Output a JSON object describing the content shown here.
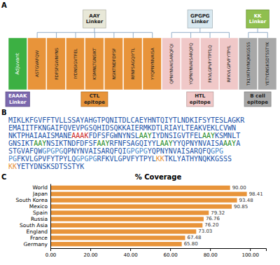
{
  "chart_data": {
    "type": "bar",
    "orientation": "horizontal",
    "title": "% Coverage",
    "categories": [
      "World",
      "Japan",
      "South Korea",
      "Mexico",
      "Spain",
      "Russia",
      "South Asia",
      "England",
      "France",
      "Germany"
    ],
    "values": [
      90.0,
      98.41,
      93.48,
      90.85,
      79.32,
      76.76,
      76.2,
      73.03,
      67.48,
      65.8
    ],
    "value_labels": [
      "90.00",
      "98.41",
      "93.48",
      "90.85",
      "79.32",
      "76.76",
      "76.20",
      "73.03",
      "67.48",
      "65.80"
    ],
    "data_labels": true,
    "color": "#E8943A",
    "grid": false,
    "xlim": [
      0,
      108
    ],
    "xticks": [
      {
        "value": 0,
        "label": "0.00"
      },
      {
        "value": 20,
        "label": "20.00"
      },
      {
        "value": 40,
        "label": "40.00"
      },
      {
        "value": 60,
        "label": "60.00"
      },
      {
        "value": 80,
        "label": "80.00"
      },
      {
        "value": 100,
        "label": "100.00"
      }
    ],
    "annotations": [
      {
        "text": "A"
      },
      {
        "text": "Adjuvant",
        "color": "#3CB043"
      },
      {
        "text": "ASTGVAFQW",
        "color": "#E8943A"
      },
      {
        "text": "FDFSFGWNYNS",
        "color": "#E8943A"
      },
      {
        "text": "IYDNSIGVTFEL",
        "color": "#E8943A"
      },
      {
        "text": "KSMNLTGNSIKT",
        "color": "#E8943A"
      },
      {
        "text": "NSIKTNDFDFSF",
        "color": "#E8943A"
      },
      {
        "text": "RFNFSAGQIYTL",
        "color": "#E8943A"
      },
      {
        "text": "YYQPNYNVAISA",
        "color": "#E8943A"
      },
      {
        "text": "QPNYNVAISARQFQI",
        "color": "#F0C8C8"
      },
      {
        "text": "YQPNYNVAISARQFQ",
        "color": "#F0C8C8"
      },
      {
        "text": "FKVLGPVFYTPTLQ",
        "color": "#F0C8C8"
      },
      {
        "text": "RFKVLGPVFYTPYL",
        "color": "#F0C8C8"
      },
      {
        "text": "TKLYATHYNQKKGSSS",
        "color": "#A8A8A8"
      },
      {
        "text": "YETYDNSKSDTSSTYK",
        "color": "#A8A8A8"
      },
      {
        "text": "AAY\nLinker",
        "color": "#E8E8D8"
      },
      {
        "text": "GPGPG\nLinker",
        "color": "#D8E8F0"
      },
      {
        "text": "KK\nLinker",
        "color": "#8FBF4F"
      },
      {
        "text": "EAAAK\nLinker",
        "color": "#7B68AE"
      },
      {
        "text": "CTL\nepitope",
        "color": "#E8943A"
      },
      {
        "text": "HTL\nepitope",
        "color": "#F0C8C8"
      },
      {
        "text": "B cell\nepitope",
        "color": "#A8A8A8"
      },
      {
        "text": "B"
      },
      {
        "segments": [
          {
            "text": "MIKLKFGVFFTVLLSSAYAHGTPQNITDLCAEYHNTQIYTLNDKIFSYTESLAGKR",
            "color": "#2255AA"
          }
        ]
      },
      {
        "segments": [
          {
            "text": "EMAIITFKNGAIFQVEVPGSQHIDSQKKAIERMKDTLRIAYLTEAKVEKLCVWN",
            "color": "#2255AA"
          }
        ]
      },
      {
        "segments": [
          {
            "text": "NKTPHAIAAISMAN",
            "color": "#2255AA"
          },
          {
            "text": "E",
            "color": "#2255AA"
          },
          {
            "text": "AAAK",
            "color": "#CC2222"
          },
          {
            "text": "FDFSFGWNYNS",
            "color": "#2255AA"
          },
          {
            "text": "L",
            "color": "#2255AA"
          },
          {
            "text": "AAY",
            "color": "#228B22"
          },
          {
            "text": "IYDNSIGVTFEL",
            "color": "#2255AA"
          },
          {
            "text": "AAY",
            "color": "#228B22"
          },
          {
            "text": "KSMNL",
            "color": "#2255AA"
          },
          {
            "text": "T",
            "color": "#2255AA"
          }
        ]
      },
      {
        "segments": [
          {
            "text": "GNSIKT",
            "color": "#2255AA"
          },
          {
            "text": "AAY",
            "color": "#228B22"
          },
          {
            "text": "NSIKTNDFDFS",
            "color": "#2255AA"
          },
          {
            "text": "F",
            "color": "#2255AA"
          },
          {
            "text": "AAY",
            "color": "#228B22"
          },
          {
            "text": "RFNFSAGQIYYL",
            "color": "#2255AA"
          },
          {
            "text": "AAY",
            "color": "#228B22"
          },
          {
            "text": "YYQPNYNVAISA",
            "color": "#2255AA"
          },
          {
            "text": "AAY",
            "color": "#228B22"
          },
          {
            "text": "A",
            "color": "#2255AA"
          }
        ]
      },
      {
        "segments": [
          {
            "text": "STGVAFQW",
            "color": "#2255AA"
          },
          {
            "text": "GPGPG",
            "color": "#4488CC"
          },
          {
            "text": "QPNYNVAISARQFQI",
            "color": "#2255AA"
          },
          {
            "text": "GPGPG",
            "color": "#4488CC"
          },
          {
            "text": "YQPNYNVAISARQFQ",
            "color": "#2255AA"
          },
          {
            "text": "GPG",
            "color": "#4488CC"
          }
        ]
      },
      {
        "segments": [
          {
            "text": "PG",
            "color": "#4488CC"
          },
          {
            "text": "FKVLGPVFYTPYLQ",
            "color": "#2255AA"
          },
          {
            "text": "GPGPG",
            "color": "#4488CC"
          },
          {
            "text": "RFKVLGPVFYTPYL",
            "color": "#2255AA"
          },
          {
            "text": "KK",
            "color": "#E8943A"
          },
          {
            "text": "TKLYATHYNQKKGSSS",
            "color": "#2255AA"
          }
        ]
      },
      {
        "segments": [
          {
            "text": "KK",
            "color": "#E8943A"
          },
          {
            "text": "YETYDNSKSDTSSTYK",
            "color": "#2255AA"
          }
        ]
      },
      {
        "text": "C"
      }
    ]
  }
}
